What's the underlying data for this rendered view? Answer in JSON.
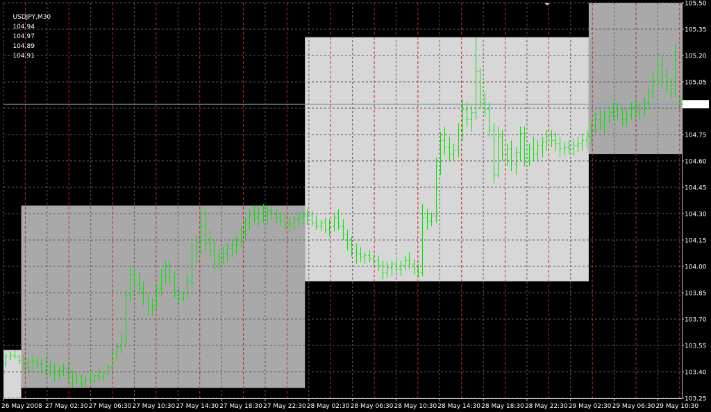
{
  "header": {
    "symbol_tf": "USDJPY,M30",
    "ohlc": [
      "104.94",
      "104.97",
      "104.89",
      "104.91"
    ]
  },
  "current_price": "104.91",
  "colors": {
    "background": "#000000",
    "grid": "#5a5a5a",
    "session_divider": "#d21e1e",
    "bar": "#00e600",
    "zone_dark": "#a9a9a9",
    "zone_light": "#d7d7d7",
    "bid_line": "#7a9ab0",
    "axis_text": "#ffffff"
  },
  "chart_data": {
    "type": "ohlc-bar",
    "symbol": "USDJPY",
    "timeframe": "M30",
    "y_min": 103.2,
    "y_max": 105.5,
    "price_labels": [
      "105.50",
      "105.35",
      "105.20",
      "105.05",
      "104.91",
      "104.75",
      "104.60",
      "104.45",
      "104.30",
      "104.15",
      "104.00",
      "103.85",
      "103.70",
      "103.55",
      "103.40",
      "103.25"
    ],
    "time_labels": [
      "26 May 2008",
      "27 May 02:30",
      "27 May 06:30",
      "27 May 10:30",
      "27 May 14:30",
      "27 May 18:30",
      "27 May 22:30",
      "28 May 02:30",
      "28 May 06:30",
      "28 May 10:30",
      "28 May 14:30",
      "28 May 18:30",
      "28 May 22:30",
      "29 May 02:30",
      "29 May 06:30",
      "29 May 10:30"
    ],
    "zones": [
      {
        "type": "light",
        "bar_start": 0,
        "bar_end": 4,
        "high": 103.48,
        "low": 103.2
      },
      {
        "type": "dark",
        "bar_start": 4,
        "bar_end": 68,
        "high": 104.32,
        "low": 103.26
      },
      {
        "type": "light",
        "bar_start": 68,
        "bar_end": 132,
        "high": 105.3,
        "low": 103.88
      },
      {
        "type": "dark",
        "bar_start": 132,
        "bar_end": 163,
        "high": 105.5,
        "low": 104.62
      }
    ],
    "bars": [
      [
        103.4,
        103.46,
        103.38,
        103.44
      ],
      [
        103.44,
        103.47,
        103.42,
        103.45
      ],
      [
        103.45,
        103.48,
        103.43,
        103.44
      ],
      [
        103.44,
        103.45,
        103.4,
        103.42
      ],
      [
        103.4,
        103.45,
        103.35,
        103.39
      ],
      [
        103.38,
        103.44,
        103.34,
        103.41
      ],
      [
        103.41,
        103.45,
        103.36,
        103.42
      ],
      [
        103.42,
        103.44,
        103.37,
        103.4
      ],
      [
        103.4,
        103.43,
        103.34,
        103.36
      ],
      [
        103.36,
        103.44,
        103.32,
        103.39
      ],
      [
        103.39,
        103.42,
        103.33,
        103.35
      ],
      [
        103.35,
        103.4,
        103.3,
        103.34
      ],
      [
        103.34,
        103.38,
        103.31,
        103.36
      ],
      [
        103.36,
        103.4,
        103.33,
        103.37
      ],
      [
        103.37,
        103.4,
        103.3,
        103.32
      ],
      [
        103.32,
        103.36,
        103.26,
        103.3
      ],
      [
        103.3,
        103.35,
        103.28,
        103.32
      ],
      [
        103.32,
        103.34,
        103.26,
        103.29
      ],
      [
        103.29,
        103.33,
        103.27,
        103.31
      ],
      [
        103.31,
        103.35,
        103.28,
        103.3
      ],
      [
        103.3,
        103.34,
        103.29,
        103.33
      ],
      [
        103.33,
        103.37,
        103.3,
        103.32
      ],
      [
        103.32,
        103.36,
        103.3,
        103.34
      ],
      [
        103.34,
        103.4,
        103.32,
        103.38
      ],
      [
        103.38,
        103.48,
        103.36,
        103.46
      ],
      [
        103.46,
        103.52,
        103.42,
        103.5
      ],
      [
        103.5,
        103.58,
        103.46,
        103.55
      ],
      [
        103.55,
        103.83,
        103.5,
        103.8
      ],
      [
        103.8,
        103.97,
        103.76,
        103.92
      ],
      [
        103.92,
        103.96,
        103.83,
        103.86
      ],
      [
        103.86,
        103.93,
        103.8,
        103.84
      ],
      [
        103.84,
        103.88,
        103.74,
        103.76
      ],
      [
        103.76,
        103.82,
        103.68,
        103.72
      ],
      [
        103.72,
        103.78,
        103.68,
        103.74
      ],
      [
        103.74,
        103.86,
        103.72,
        103.84
      ],
      [
        103.84,
        103.95,
        103.8,
        103.91
      ],
      [
        103.91,
        104.0,
        103.86,
        103.97
      ],
      [
        103.97,
        104.0,
        103.86,
        103.9
      ],
      [
        103.9,
        103.94,
        103.78,
        103.8
      ],
      [
        103.8,
        103.84,
        103.74,
        103.78
      ],
      [
        103.78,
        103.82,
        103.76,
        103.81
      ],
      [
        103.81,
        103.92,
        103.78,
        103.88
      ],
      [
        103.88,
        104.1,
        103.84,
        104.05
      ],
      [
        104.05,
        104.15,
        103.98,
        104.1
      ],
      [
        104.1,
        104.3,
        104.04,
        104.2
      ],
      [
        104.2,
        104.3,
        104.05,
        104.1
      ],
      [
        104.1,
        104.18,
        104.02,
        104.06
      ],
      [
        104.06,
        104.12,
        103.95,
        103.98
      ],
      [
        103.98,
        104.06,
        103.95,
        104.02
      ],
      [
        104.02,
        104.08,
        103.98,
        104.04
      ],
      [
        104.04,
        104.1,
        103.99,
        104.07
      ],
      [
        104.07,
        104.12,
        104.02,
        104.09
      ],
      [
        104.09,
        104.14,
        104.04,
        104.11
      ],
      [
        104.11,
        104.2,
        104.08,
        104.17
      ],
      [
        104.17,
        104.25,
        104.12,
        104.22
      ],
      [
        104.22,
        104.3,
        104.18,
        104.27
      ],
      [
        104.27,
        104.32,
        104.22,
        104.25
      ],
      [
        104.25,
        104.31,
        104.2,
        104.28
      ],
      [
        104.28,
        104.33,
        104.22,
        104.26
      ],
      [
        104.26,
        104.32,
        104.21,
        104.29
      ],
      [
        104.29,
        104.32,
        104.24,
        104.27
      ],
      [
        104.27,
        104.3,
        104.22,
        104.25
      ],
      [
        104.25,
        104.28,
        104.2,
        104.23
      ],
      [
        104.23,
        104.27,
        104.18,
        104.21
      ],
      [
        104.21,
        104.25,
        104.17,
        104.22
      ],
      [
        104.22,
        104.26,
        104.18,
        104.24
      ],
      [
        104.24,
        104.28,
        104.2,
        104.25
      ],
      [
        104.25,
        104.29,
        104.21,
        104.26
      ],
      [
        104.26,
        104.3,
        104.21,
        104.27
      ],
      [
        104.27,
        104.29,
        104.2,
        104.22
      ],
      [
        104.22,
        104.26,
        104.18,
        104.2
      ],
      [
        104.2,
        104.24,
        104.17,
        104.22
      ],
      [
        104.22,
        104.25,
        104.16,
        104.18
      ],
      [
        104.18,
        104.24,
        104.14,
        104.2
      ],
      [
        104.2,
        104.28,
        104.17,
        104.25
      ],
      [
        104.25,
        104.3,
        104.18,
        104.2
      ],
      [
        104.2,
        104.24,
        104.12,
        104.15
      ],
      [
        104.15,
        104.18,
        104.06,
        104.1
      ],
      [
        104.1,
        104.14,
        104.02,
        104.05
      ],
      [
        104.05,
        104.1,
        103.98,
        104.04
      ],
      [
        104.04,
        104.08,
        103.99,
        104.02
      ],
      [
        104.02,
        104.05,
        103.98,
        104.03
      ],
      [
        104.03,
        104.06,
        103.99,
        104.01
      ],
      [
        104.01,
        104.04,
        103.97,
        104.0
      ],
      [
        104.0,
        104.03,
        103.94,
        103.97
      ],
      [
        103.97,
        104.0,
        103.89,
        103.93
      ],
      [
        103.93,
        103.99,
        103.9,
        103.96
      ],
      [
        103.96,
        104.0,
        103.91,
        103.98
      ],
      [
        103.98,
        104.02,
        103.93,
        103.95
      ],
      [
        103.95,
        104.0,
        103.91,
        103.97
      ],
      [
        103.97,
        104.03,
        103.94,
        104.0
      ],
      [
        104.0,
        104.05,
        103.95,
        103.98
      ],
      [
        103.98,
        104.01,
        103.92,
        103.95
      ],
      [
        103.95,
        103.98,
        103.9,
        103.93
      ],
      [
        103.93,
        104.33,
        103.91,
        104.25
      ],
      [
        104.25,
        104.3,
        104.18,
        104.23
      ],
      [
        104.23,
        104.28,
        104.2,
        104.26
      ],
      [
        104.26,
        104.6,
        104.22,
        104.55
      ],
      [
        104.55,
        104.75,
        104.5,
        104.7
      ],
      [
        104.7,
        104.78,
        104.62,
        104.66
      ],
      [
        104.66,
        104.72,
        104.58,
        104.62
      ],
      [
        104.62,
        104.68,
        104.58,
        104.64
      ],
      [
        104.64,
        104.8,
        104.6,
        104.76
      ],
      [
        104.76,
        104.94,
        104.7,
        104.88
      ],
      [
        104.88,
        104.92,
        104.78,
        104.82
      ],
      [
        104.82,
        104.9,
        104.75,
        104.86
      ],
      [
        104.86,
        105.3,
        104.82,
        105.1
      ],
      [
        105.1,
        105.12,
        104.88,
        104.92
      ],
      [
        104.92,
        104.98,
        104.84,
        104.88
      ],
      [
        104.88,
        104.92,
        104.72,
        104.76
      ],
      [
        104.76,
        104.8,
        104.45,
        104.5
      ],
      [
        104.5,
        104.78,
        104.48,
        104.72
      ],
      [
        104.72,
        104.76,
        104.58,
        104.62
      ],
      [
        104.62,
        104.68,
        104.55,
        104.65
      ],
      [
        104.65,
        104.7,
        104.52,
        104.56
      ],
      [
        104.56,
        104.66,
        104.5,
        104.63
      ],
      [
        104.63,
        104.78,
        104.58,
        104.74
      ],
      [
        104.74,
        104.78,
        104.55,
        104.6
      ],
      [
        104.6,
        104.68,
        104.55,
        104.65
      ],
      [
        104.65,
        104.72,
        104.58,
        104.62
      ],
      [
        104.62,
        104.7,
        104.58,
        104.67
      ],
      [
        104.67,
        104.72,
        104.6,
        104.69
      ],
      [
        104.69,
        104.76,
        104.64,
        104.72
      ],
      [
        104.72,
        104.76,
        104.66,
        104.7
      ],
      [
        104.7,
        104.75,
        104.64,
        104.68
      ],
      [
        104.68,
        104.72,
        104.6,
        104.65
      ],
      [
        104.65,
        104.69,
        104.61,
        104.66
      ],
      [
        104.66,
        104.7,
        104.62,
        104.65
      ],
      [
        104.65,
        104.71,
        104.61,
        104.67
      ],
      [
        104.67,
        104.72,
        104.63,
        104.68
      ],
      [
        104.68,
        104.74,
        104.64,
        104.7
      ],
      [
        104.7,
        104.76,
        104.65,
        104.72
      ],
      [
        104.72,
        104.8,
        104.68,
        104.78
      ],
      [
        104.78,
        104.86,
        104.74,
        104.82
      ],
      [
        104.82,
        104.88,
        104.76,
        104.8
      ],
      [
        104.8,
        104.87,
        104.74,
        104.84
      ],
      [
        104.84,
        104.9,
        104.8,
        104.86
      ],
      [
        104.86,
        104.92,
        104.82,
        104.88
      ],
      [
        104.88,
        104.92,
        104.82,
        104.85
      ],
      [
        104.85,
        104.89,
        104.78,
        104.82
      ],
      [
        104.82,
        104.88,
        104.78,
        104.85
      ],
      [
        104.85,
        104.92,
        104.82,
        104.89
      ],
      [
        104.89,
        104.94,
        104.83,
        104.86
      ],
      [
        104.86,
        104.92,
        104.82,
        104.88
      ],
      [
        104.88,
        104.95,
        104.84,
        104.92
      ],
      [
        104.92,
        105.02,
        104.88,
        104.98
      ],
      [
        104.98,
        105.1,
        104.94,
        105.05
      ],
      [
        105.05,
        105.18,
        105.0,
        105.14
      ],
      [
        105.14,
        105.2,
        105.0,
        105.08
      ],
      [
        105.08,
        105.12,
        104.98,
        105.02
      ],
      [
        105.02,
        105.06,
        104.94,
        104.98
      ],
      [
        104.98,
        105.26,
        104.95,
        105.22
      ],
      [
        104.94,
        104.97,
        104.89,
        104.91
      ]
    ]
  }
}
